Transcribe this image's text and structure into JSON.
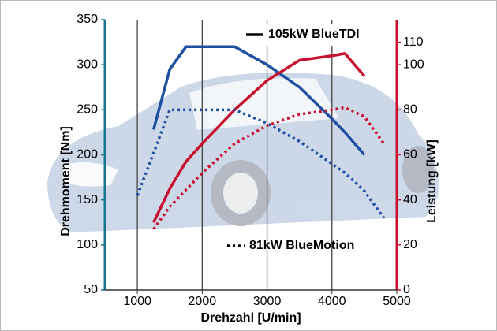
{
  "chart_data": {
    "type": "line",
    "xlabel": "Drehzahl [U/min]",
    "ylabel": "Drehmoment [Nm]",
    "y2label": "Leistung [kW]",
    "xlim": [
      500,
      5000
    ],
    "xticks": [
      1000,
      2000,
      3000,
      4000,
      5000
    ],
    "ylim": [
      50,
      350
    ],
    "yticks": [
      50,
      100,
      150,
      200,
      250,
      300,
      350
    ],
    "y2lim": [
      0,
      120
    ],
    "y2ticks": [
      0,
      20,
      40,
      60,
      80,
      100,
      110
    ],
    "grid": "x",
    "torque_color": "#1f4fa0",
    "power_color": "#c8102e",
    "series": [
      {
        "name": "105kW BlueTDI",
        "dash": false,
        "x": [
          1250,
          1500,
          1750,
          2000,
          2500,
          3000,
          3500,
          4000,
          4200,
          4500
        ],
        "values": [
          228,
          295,
          320,
          320,
          320,
          300,
          275,
          240,
          225,
          200
        ],
        "values2": [
          30,
          45,
          57,
          65,
          80,
          93,
          102,
          104,
          105,
          95
        ]
      },
      {
        "name": "81kW BlueMotion",
        "dash": true,
        "x": [
          1000,
          1250,
          1500,
          2000,
          2500,
          3000,
          3500,
          4000,
          4200,
          4500,
          4800
        ],
        "values": [
          155,
          202,
          250,
          250,
          250,
          235,
          215,
          190,
          180,
          160,
          130
        ],
        "values2": [
          null,
          27,
          37,
          52,
          65,
          73,
          78,
          80,
          81,
          77,
          65
        ]
      }
    ]
  }
}
